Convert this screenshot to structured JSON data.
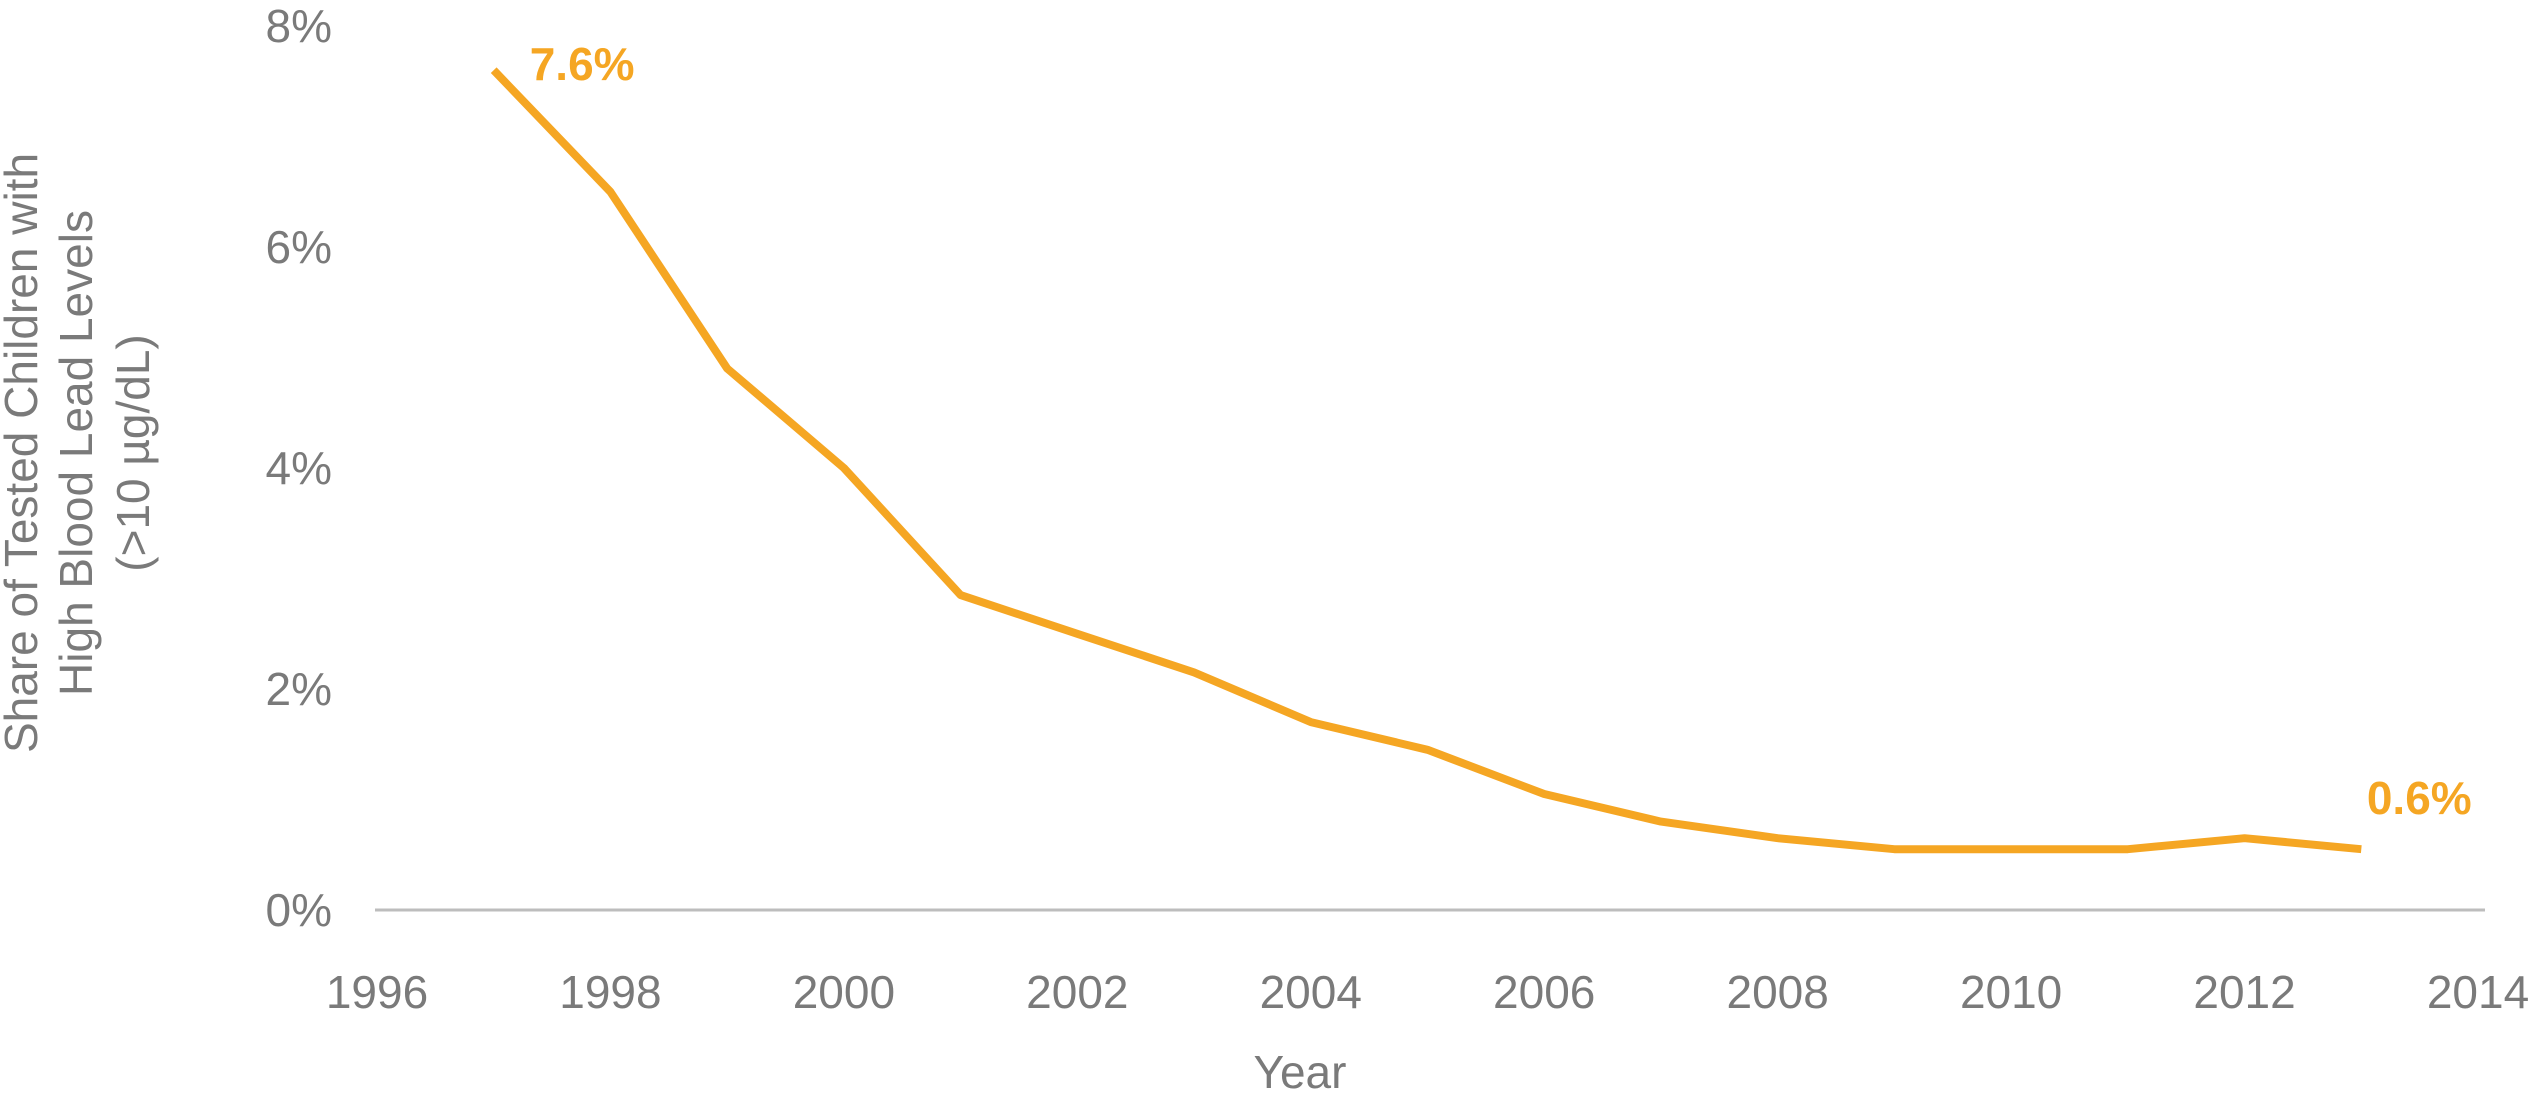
{
  "colors": {
    "line": "#F5A623",
    "axis": "#bdbdbd",
    "text": "#7a7a7a"
  },
  "chart_data": {
    "type": "line",
    "title": "",
    "xlabel": "Year",
    "ylabel_lines": [
      "Share of Tested Children with",
      "High Blood Lead Levels",
      "(>10 µg/dL)"
    ],
    "x_ticks": [
      "1996",
      "1998",
      "2000",
      "2002",
      "2004",
      "2006",
      "2008",
      "2010",
      "2012",
      "2014"
    ],
    "y_ticks": [
      "0%",
      "2%",
      "4%",
      "6%",
      "8%"
    ],
    "xlim": [
      1996,
      2014
    ],
    "ylim": [
      0,
      8
    ],
    "grid": false,
    "legend": "none",
    "series": [
      {
        "x": [
          1997,
          1998,
          1999,
          2000,
          2001,
          2002,
          2003,
          2004,
          2005,
          2006,
          2007,
          2008,
          2009,
          2010,
          2011,
          2012,
          2013
        ],
        "y": [
          7.6,
          6.5,
          4.9,
          4.0,
          2.85,
          2.5,
          2.15,
          1.7,
          1.45,
          1.05,
          0.8,
          0.65,
          0.55,
          0.55,
          0.55,
          0.65,
          0.55
        ]
      }
    ],
    "annotations": [
      {
        "text": "7.6%",
        "x": 1997,
        "y": 7.6
      },
      {
        "text": "0.6%",
        "x": 2013,
        "y": 0.55
      }
    ]
  }
}
